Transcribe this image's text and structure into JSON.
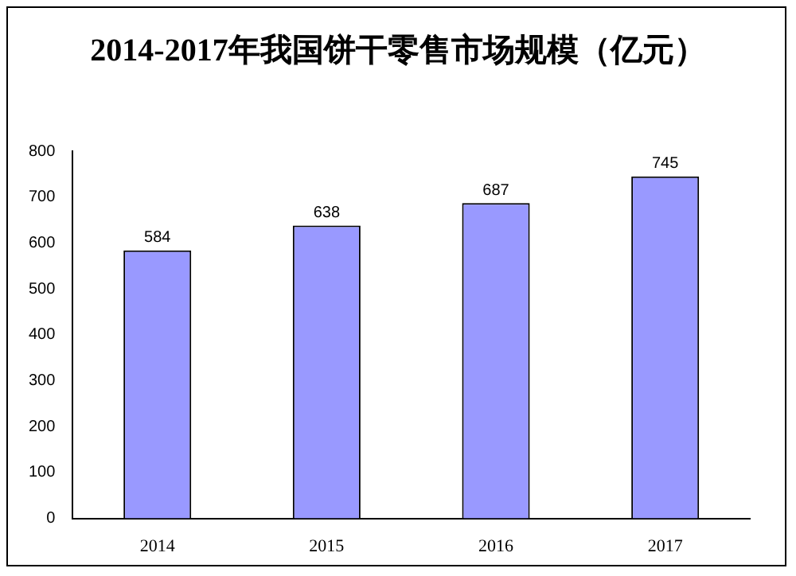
{
  "chart_data": {
    "type": "bar",
    "title": "2014-2017年我国饼干零售市场规模（亿元）",
    "categories": [
      "2014",
      "2015",
      "2016",
      "2017"
    ],
    "values": [
      584,
      638,
      687,
      745
    ],
    "color": "#9999ff",
    "ylim": [
      0,
      800
    ],
    "yticks": [
      0,
      100,
      200,
      300,
      400,
      500,
      600,
      700,
      800
    ],
    "grid": false,
    "legend": false,
    "data_labels": true
  }
}
